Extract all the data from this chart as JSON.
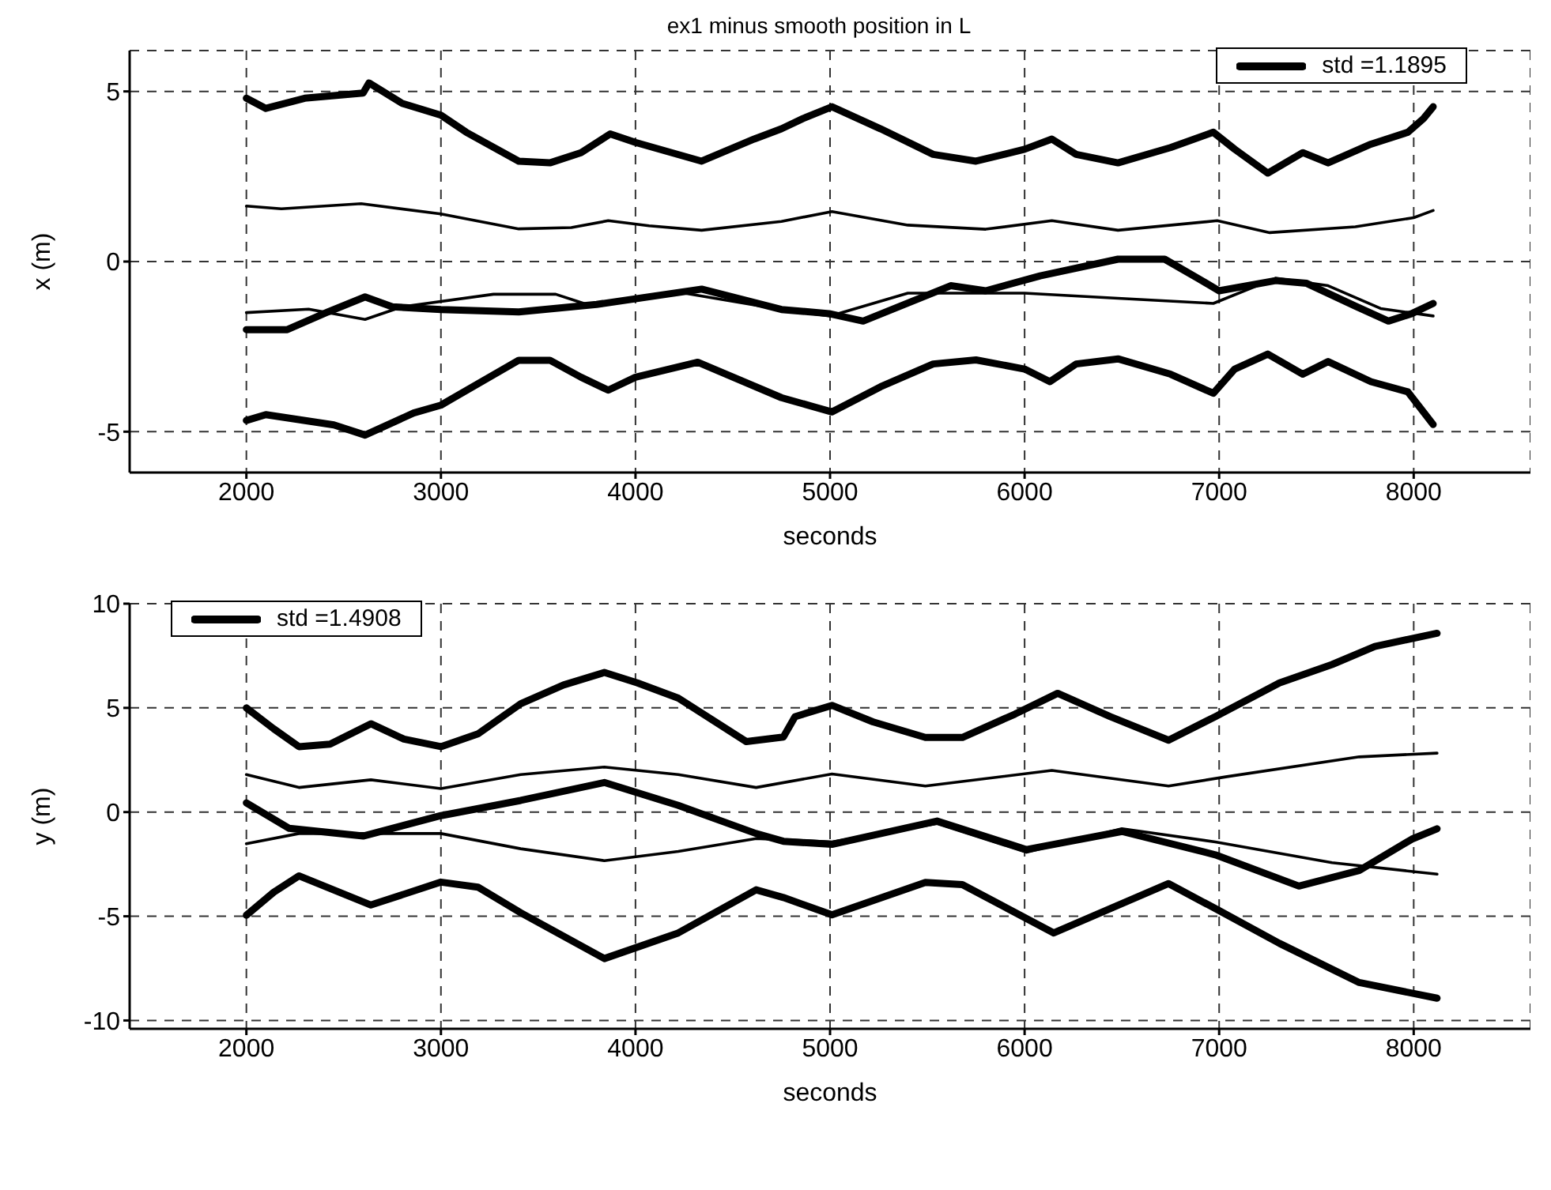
{
  "chart_data": [
    {
      "type": "line",
      "title": "ex1 minus smooth position in L",
      "xlabel": "seconds",
      "ylabel": "x (m)",
      "xlim": [
        1400,
        8600
      ],
      "xticks": [
        2000,
        3000,
        4000,
        5000,
        6000,
        7000,
        8000
      ],
      "ylim": [
        -6.2,
        6.2
      ],
      "yticks": [
        -5,
        0,
        5
      ],
      "grid": true,
      "legend": "top right",
      "line_style": "solid",
      "series": [
        {
          "name": "std =1.1895",
          "color": "#000000",
          "x": [
            2000,
            2100,
            2300,
            2600,
            2630,
            2800,
            3000,
            3130,
            3400,
            3560,
            3720,
            3870,
            4000,
            4340,
            4610,
            4750,
            4860,
            5010,
            5260,
            5530,
            5750,
            6000,
            6140,
            6265,
            6480,
            6750,
            6970,
            7080,
            7250,
            7430,
            7560,
            7780,
            7970,
            8050,
            8100
          ],
          "values": [
            4.8,
            4.5,
            4.8,
            4.95,
            5.25,
            4.65,
            4.3,
            3.8,
            2.95,
            2.9,
            3.2,
            3.75,
            3.5,
            2.95,
            3.6,
            3.9,
            4.2,
            4.55,
            3.9,
            3.15,
            2.95,
            3.3,
            3.6,
            3.15,
            2.9,
            3.35,
            3.8,
            3.3,
            2.6,
            3.2,
            2.9,
            3.45,
            3.8,
            4.2,
            4.55
          ]
        },
        {
          "color": "#000000",
          "x": [
            2000,
            2180,
            2590,
            3000,
            3400,
            3670,
            3860,
            4070,
            4340,
            4750,
            5010,
            5400,
            5800,
            6140,
            6480,
            6990,
            7260,
            7700,
            8000,
            8100
          ],
          "values": [
            1.63,
            1.55,
            1.7,
            1.4,
            0.96,
            1.0,
            1.2,
            1.05,
            0.92,
            1.18,
            1.47,
            1.07,
            0.95,
            1.2,
            0.92,
            1.2,
            0.85,
            1.02,
            1.29,
            1.5
          ]
        },
        {
          "color": "#000000",
          "x": [
            2000,
            2210,
            2420,
            2610,
            2750,
            3000,
            3400,
            3800,
            4340,
            4750,
            4995,
            5170,
            5620,
            5800,
            6080,
            6480,
            6720,
            6890,
            7000,
            7290,
            7450,
            7700,
            7870,
            7990,
            8100
          ],
          "values": [
            -2.0,
            -2.0,
            -1.48,
            -1.04,
            -1.33,
            -1.41,
            -1.48,
            -1.26,
            -0.81,
            -1.41,
            -1.53,
            -1.75,
            -0.71,
            -0.86,
            -0.42,
            0.07,
            0.07,
            -0.49,
            -0.86,
            -0.56,
            -0.64,
            -1.31,
            -1.75,
            -1.53,
            -1.23
          ]
        },
        {
          "color": "#000000",
          "x": [
            2000,
            2320,
            2610,
            2800,
            3270,
            3590,
            3750,
            4210,
            4750,
            5000,
            5400,
            6000,
            6480,
            6970,
            7290,
            7560,
            7830,
            8100
          ],
          "values": [
            -1.5,
            -1.4,
            -1.7,
            -1.33,
            -0.96,
            -0.96,
            -1.26,
            -0.89,
            -1.41,
            -1.6,
            -0.93,
            -0.93,
            -1.08,
            -1.23,
            -0.49,
            -0.71,
            -1.38,
            -1.6
          ]
        },
        {
          "color": "#000000",
          "x": [
            2000,
            2100,
            2450,
            2610,
            2860,
            3000,
            3400,
            3560,
            3720,
            3860,
            4000,
            4320,
            4750,
            5010,
            5260,
            5530,
            5750,
            6000,
            6130,
            6265,
            6480,
            6750,
            6970,
            7080,
            7250,
            7430,
            7560,
            7780,
            7970,
            8100
          ],
          "values": [
            -4.67,
            -4.5,
            -4.8,
            -5.1,
            -4.45,
            -4.22,
            -2.9,
            -2.9,
            -3.4,
            -3.78,
            -3.4,
            -2.96,
            -4.0,
            -4.42,
            -3.68,
            -3.01,
            -2.89,
            -3.16,
            -3.53,
            -3.01,
            -2.86,
            -3.31,
            -3.87,
            -3.16,
            -2.72,
            -3.31,
            -2.94,
            -3.53,
            -3.83,
            -4.79
          ]
        }
      ]
    },
    {
      "type": "line",
      "xlabel": "seconds",
      "ylabel": "y (m)",
      "xlim": [
        1400,
        8600
      ],
      "xticks": [
        2000,
        3000,
        4000,
        5000,
        6000,
        7000,
        8000
      ],
      "ylim": [
        -10.4,
        10
      ],
      "yticks": [
        -10,
        -5,
        0,
        5,
        10
      ],
      "grid": true,
      "legend": "top left",
      "line_style": "solid",
      "series": [
        {
          "name": "std =1.4908",
          "color": "#000000",
          "x": [
            2000,
            2140,
            2270,
            2430,
            2640,
            2810,
            3000,
            3190,
            3410,
            3630,
            3840,
            4010,
            4220,
            4570,
            4760,
            4820,
            5010,
            5220,
            5490,
            5680,
            5950,
            6170,
            6440,
            6740,
            6980,
            7310,
            7580,
            7800,
            8120
          ],
          "values": [
            5.0,
            4.0,
            3.14,
            3.26,
            4.24,
            3.5,
            3.14,
            3.75,
            5.2,
            6.1,
            6.7,
            6.2,
            5.47,
            3.38,
            3.6,
            4.58,
            5.12,
            4.33,
            3.58,
            3.58,
            4.7,
            5.7,
            4.58,
            3.45,
            4.58,
            6.2,
            7.08,
            7.95,
            8.58
          ]
        },
        {
          "color": "#000000",
          "x": [
            2000,
            2270,
            2640,
            3000,
            3410,
            3840,
            4220,
            4620,
            5010,
            5490,
            6140,
            6740,
            7040,
            7720,
            8120
          ],
          "values": [
            1.8,
            1.18,
            1.55,
            1.13,
            1.8,
            2.16,
            1.8,
            1.18,
            1.83,
            1.25,
            2.0,
            1.25,
            1.7,
            2.65,
            2.83
          ]
        },
        {
          "color": "#000000",
          "x": [
            2000,
            2220,
            2600,
            3000,
            3410,
            3840,
            4220,
            4620,
            4760,
            5010,
            5550,
            6010,
            6500,
            6980,
            7410,
            7720,
            7990,
            8120
          ],
          "values": [
            0.44,
            -0.78,
            -1.15,
            -0.17,
            0.56,
            1.42,
            0.32,
            -1.03,
            -1.4,
            -1.55,
            -0.43,
            -1.8,
            -0.93,
            -2.05,
            -3.55,
            -2.8,
            -1.3,
            -0.8
          ]
        },
        {
          "color": "#000000",
          "x": [
            2000,
            2270,
            2600,
            3000,
            3410,
            3840,
            4220,
            4620,
            5010,
            5550,
            6010,
            6500,
            6980,
            7580,
            8120
          ],
          "values": [
            -1.52,
            -1.03,
            -1.03,
            -1.03,
            -1.76,
            -2.33,
            -1.89,
            -1.27,
            -1.43,
            -0.55,
            -1.93,
            -0.8,
            -1.43,
            -2.43,
            -2.98
          ]
        },
        {
          "color": "#000000",
          "x": [
            2000,
            2140,
            2270,
            2640,
            3000,
            3190,
            3410,
            3840,
            4220,
            4620,
            4760,
            5010,
            5490,
            5680,
            6150,
            6740,
            6980,
            7310,
            7720,
            8120
          ],
          "values": [
            -4.95,
            -3.85,
            -3.06,
            -4.46,
            -3.36,
            -3.6,
            -4.83,
            -7.03,
            -5.8,
            -3.73,
            -4.1,
            -4.93,
            -3.38,
            -3.48,
            -5.8,
            -3.43,
            -4.63,
            -6.3,
            -8.18,
            -8.93
          ]
        }
      ]
    }
  ]
}
